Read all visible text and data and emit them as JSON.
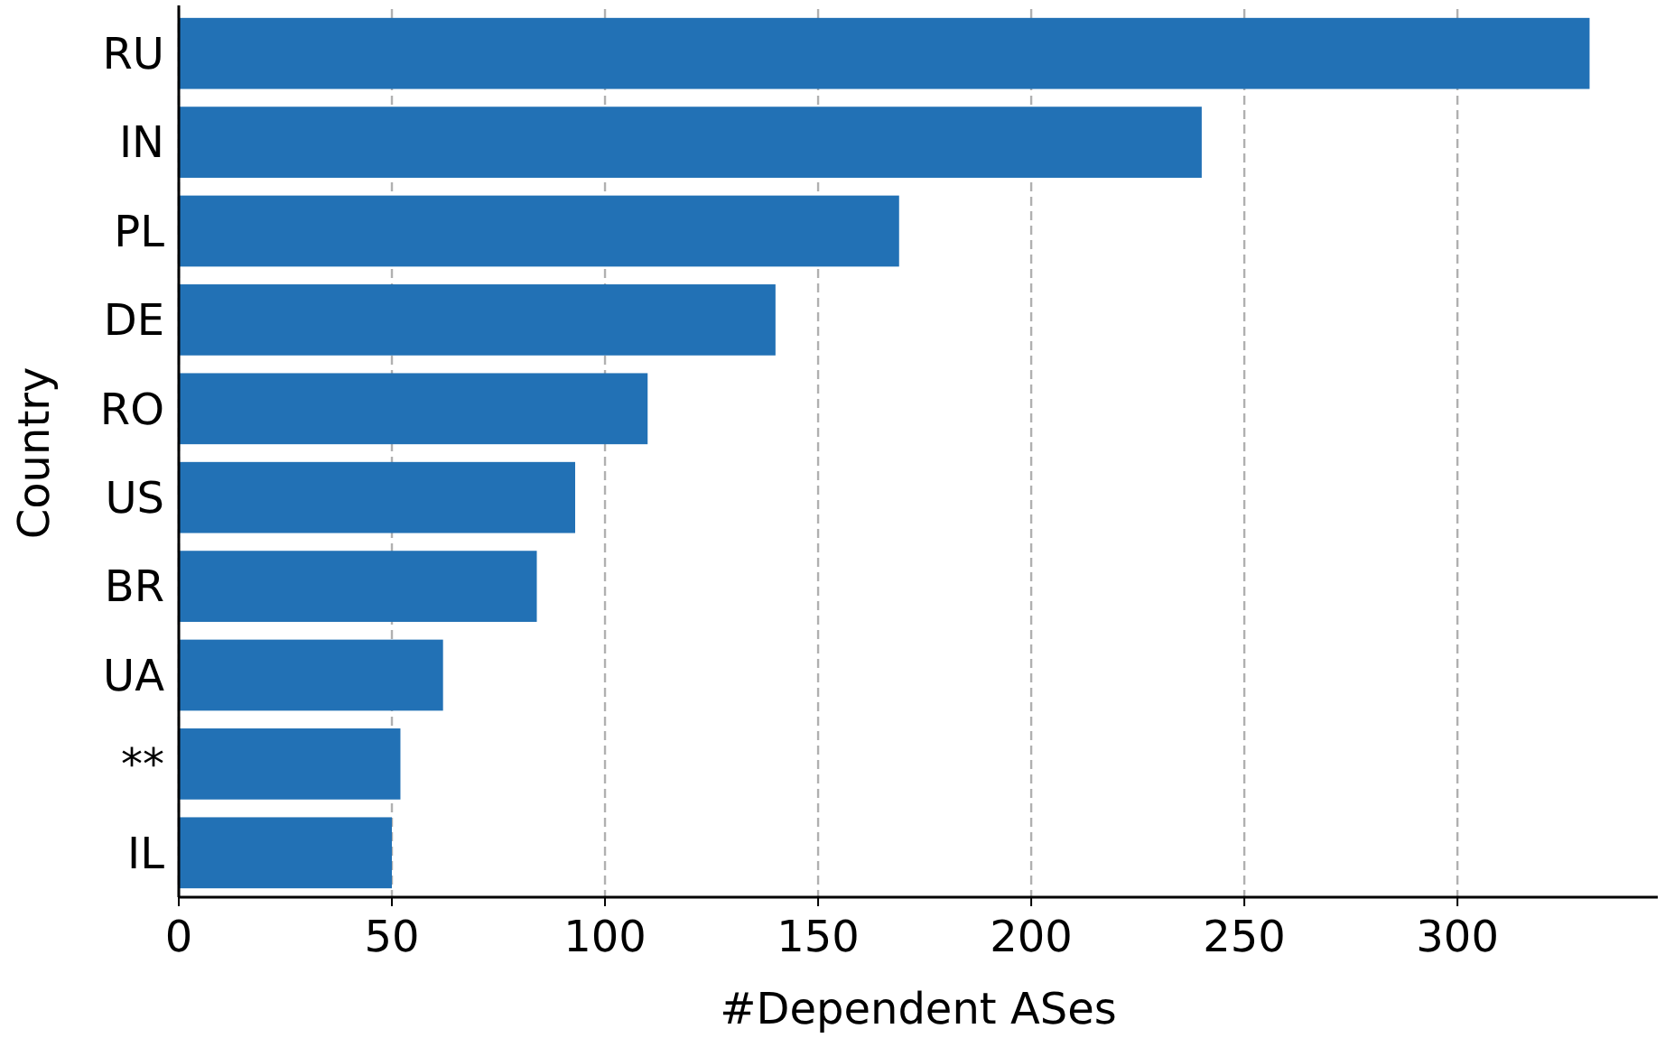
{
  "chart_data": {
    "type": "bar",
    "orientation": "horizontal",
    "xlabel": "#Dependent ASes",
    "ylabel": "Country",
    "categories": [
      "RU",
      "IN",
      "PL",
      "DE",
      "RO",
      "US",
      "BR",
      "UA",
      "**",
      "IL"
    ],
    "values": [
      331,
      240,
      169,
      140,
      110,
      93,
      84,
      62,
      52,
      50
    ],
    "color": "#2271b5",
    "xlim": [
      0,
      347
    ],
    "xticks": [
      0,
      50,
      100,
      150,
      200,
      250,
      300
    ],
    "grid": "x"
  }
}
